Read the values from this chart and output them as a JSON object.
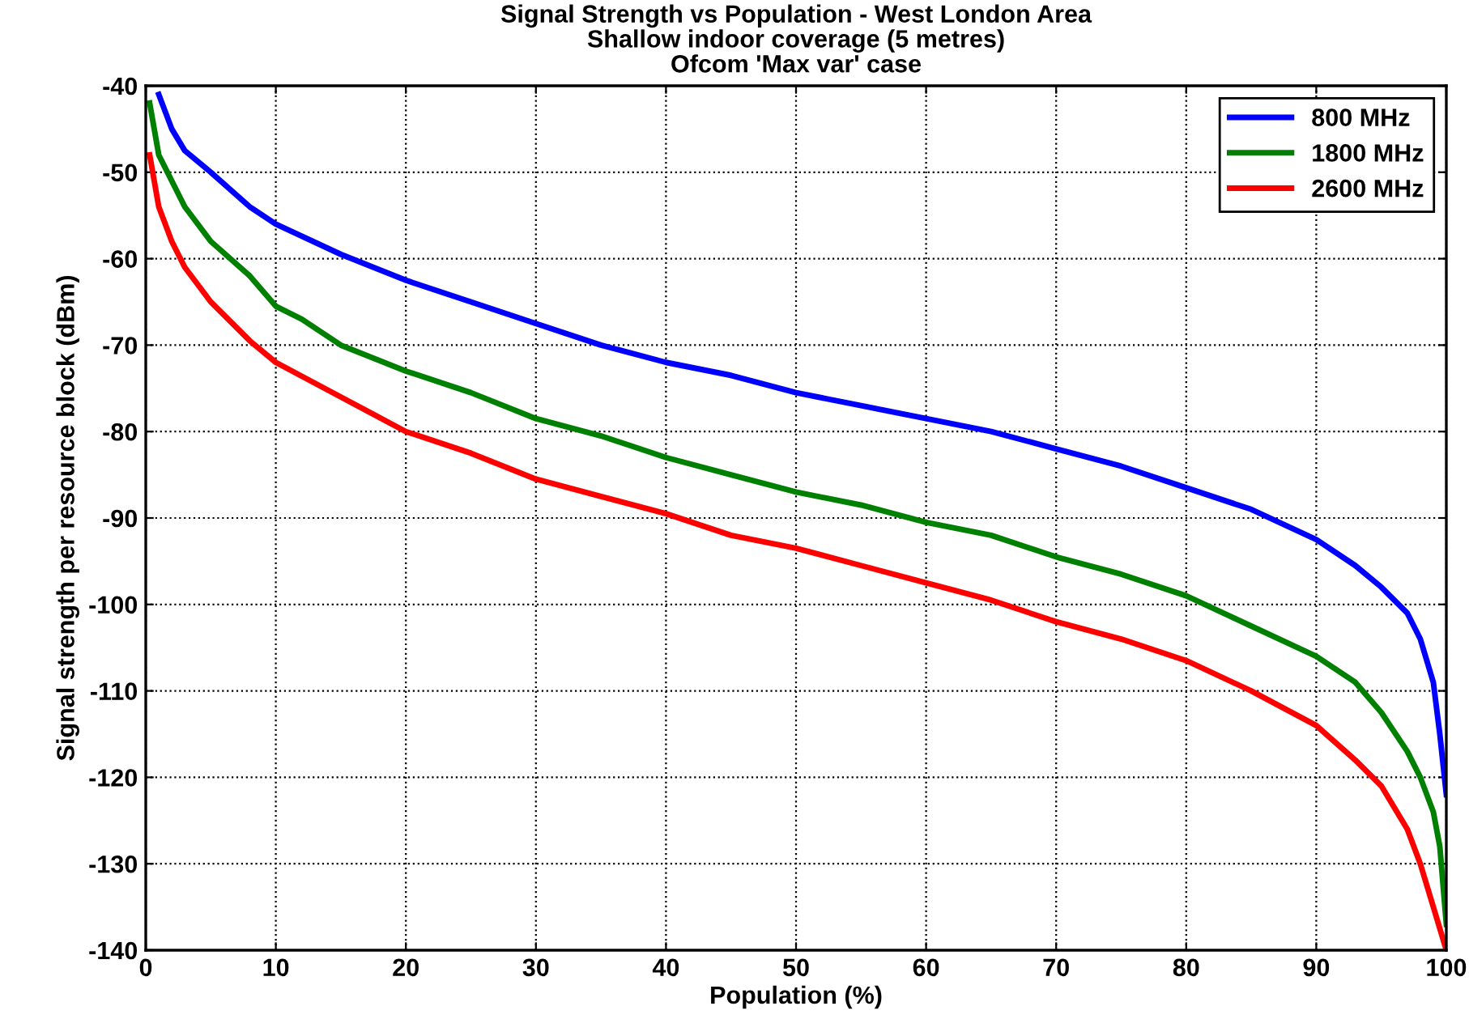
{
  "chart_data": {
    "type": "line",
    "title": "Signal Strength vs Population - West London Area\nShallow indoor coverage (5 metres)\nOfcom 'Max var' case",
    "xlabel": "Population (%)",
    "ylabel": "Signal strength per resource block (dBm)",
    "series": [
      {
        "name": "800 MHz",
        "color": "#0000ff",
        "x": [
          1,
          2,
          3,
          5,
          8,
          10,
          15,
          20,
          25,
          30,
          35,
          40,
          45,
          50,
          55,
          60,
          65,
          70,
          75,
          80,
          85,
          90,
          93,
          95,
          97,
          98,
          99,
          99.5,
          100
        ],
        "values": [
          -41,
          -45,
          -47.5,
          -50,
          -54,
          -56,
          -59.5,
          -62.5,
          -65,
          -67.5,
          -70,
          -72,
          -73.5,
          -75.5,
          -77,
          -78.5,
          -80,
          -82,
          -84,
          -86.5,
          -89,
          -92.5,
          -95.5,
          -98,
          -101,
          -104,
          -109,
          -115,
          -122
        ]
      },
      {
        "name": "1800 MHz",
        "color": "#008000",
        "x": [
          0.3,
          1,
          3,
          5,
          8,
          10,
          12,
          15,
          20,
          25,
          30,
          35,
          40,
          45,
          50,
          55,
          60,
          65,
          70,
          75,
          80,
          85,
          90,
          93,
          95,
          97,
          98,
          99,
          99.5,
          100
        ],
        "values": [
          -42,
          -48,
          -54,
          -58,
          -62,
          -65.5,
          -67,
          -70,
          -73,
          -75.5,
          -78.5,
          -80.5,
          -83,
          -85,
          -87,
          -88.5,
          -90.5,
          -92,
          -94.5,
          -96.5,
          -99,
          -102.5,
          -106,
          -109,
          -112.5,
          -117,
          -120,
          -124,
          -128,
          -137
        ]
      },
      {
        "name": "2600 MHz",
        "color": "#ff0000",
        "x": [
          0.3,
          1,
          2,
          3,
          5,
          8,
          10,
          15,
          20,
          25,
          30,
          35,
          40,
          45,
          50,
          55,
          60,
          65,
          70,
          75,
          80,
          85,
          90,
          93,
          95,
          97,
          98,
          99,
          100
        ],
        "values": [
          -48,
          -54,
          -58,
          -61,
          -65,
          -69.5,
          -72,
          -76,
          -80,
          -82.5,
          -85.5,
          -87.5,
          -89.5,
          -92,
          -93.5,
          -95.5,
          -97.5,
          -99.5,
          -102,
          -104,
          -106.5,
          -110,
          -114,
          -118,
          -121,
          -126,
          -130,
          -135,
          -140
        ]
      }
    ],
    "xlim": [
      0,
      100
    ],
    "xticks": [
      0,
      10,
      20,
      30,
      40,
      50,
      60,
      70,
      80,
      90,
      100
    ],
    "ylim": [
      -140,
      -40
    ],
    "yticks": [
      -140,
      -130,
      -120,
      -110,
      -100,
      -90,
      -80,
      -70,
      -60,
      -50,
      -40
    ],
    "grid": true,
    "legend": "top right",
    "marker": "none",
    "line_style": "solid"
  }
}
